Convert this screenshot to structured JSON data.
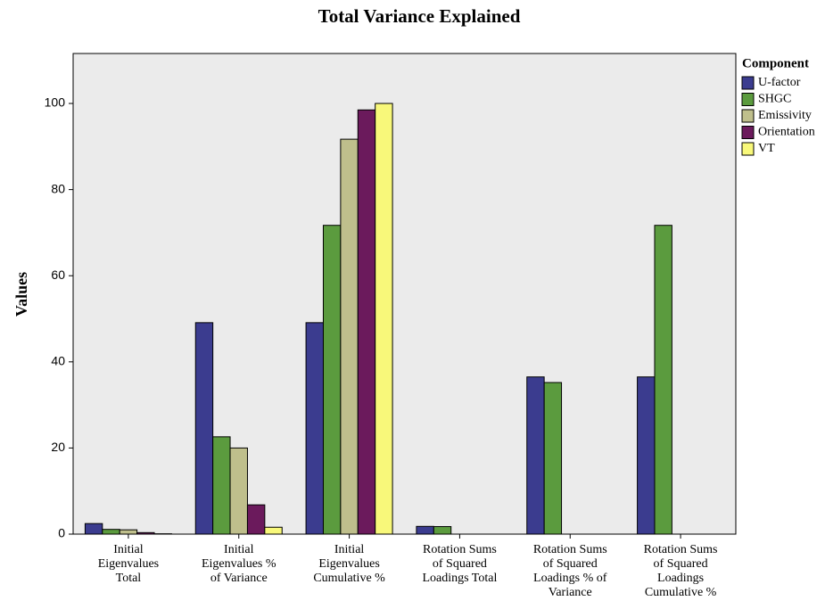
{
  "chart_data": {
    "type": "bar",
    "title": "Total Variance Explained",
    "y_label": "Values",
    "legend_title": "Component",
    "legend_position": "top-right-outside",
    "categories": [
      "Initial Eigenvalues Total",
      "Initial Eigenvalues % of Variance",
      "Initial Eigenvalues Cumulative %",
      "Rotation Sums of Squared Loadings Total",
      "Rotation Sums of Squared Loadings % of Variance",
      "Rotation Sums of Squared Loadings Cumulative %"
    ],
    "series": [
      {
        "name": "U-factor",
        "color": "#3b3c8f",
        "values": [
          2.45,
          49.1,
          49.1,
          1.8,
          36.5,
          36.5
        ]
      },
      {
        "name": "SHGC",
        "color": "#5b9b3e",
        "values": [
          1.1,
          22.6,
          71.7,
          1.75,
          35.2,
          71.7
        ]
      },
      {
        "name": "Emissivity",
        "color": "#bfbf8c",
        "values": [
          1.0,
          20.0,
          91.7,
          null,
          null,
          null
        ]
      },
      {
        "name": "Orientation",
        "color": "#6b1a5c",
        "values": [
          0.35,
          6.8,
          98.5,
          null,
          null,
          null
        ]
      },
      {
        "name": "VT",
        "color": "#f8f87a",
        "values": [
          0.08,
          1.6,
          100,
          null,
          null,
          null
        ]
      }
    ],
    "ylim": [
      0,
      111.6
    ],
    "yticks": [
      0,
      20,
      40,
      60,
      80,
      100
    ],
    "grid": false
  }
}
